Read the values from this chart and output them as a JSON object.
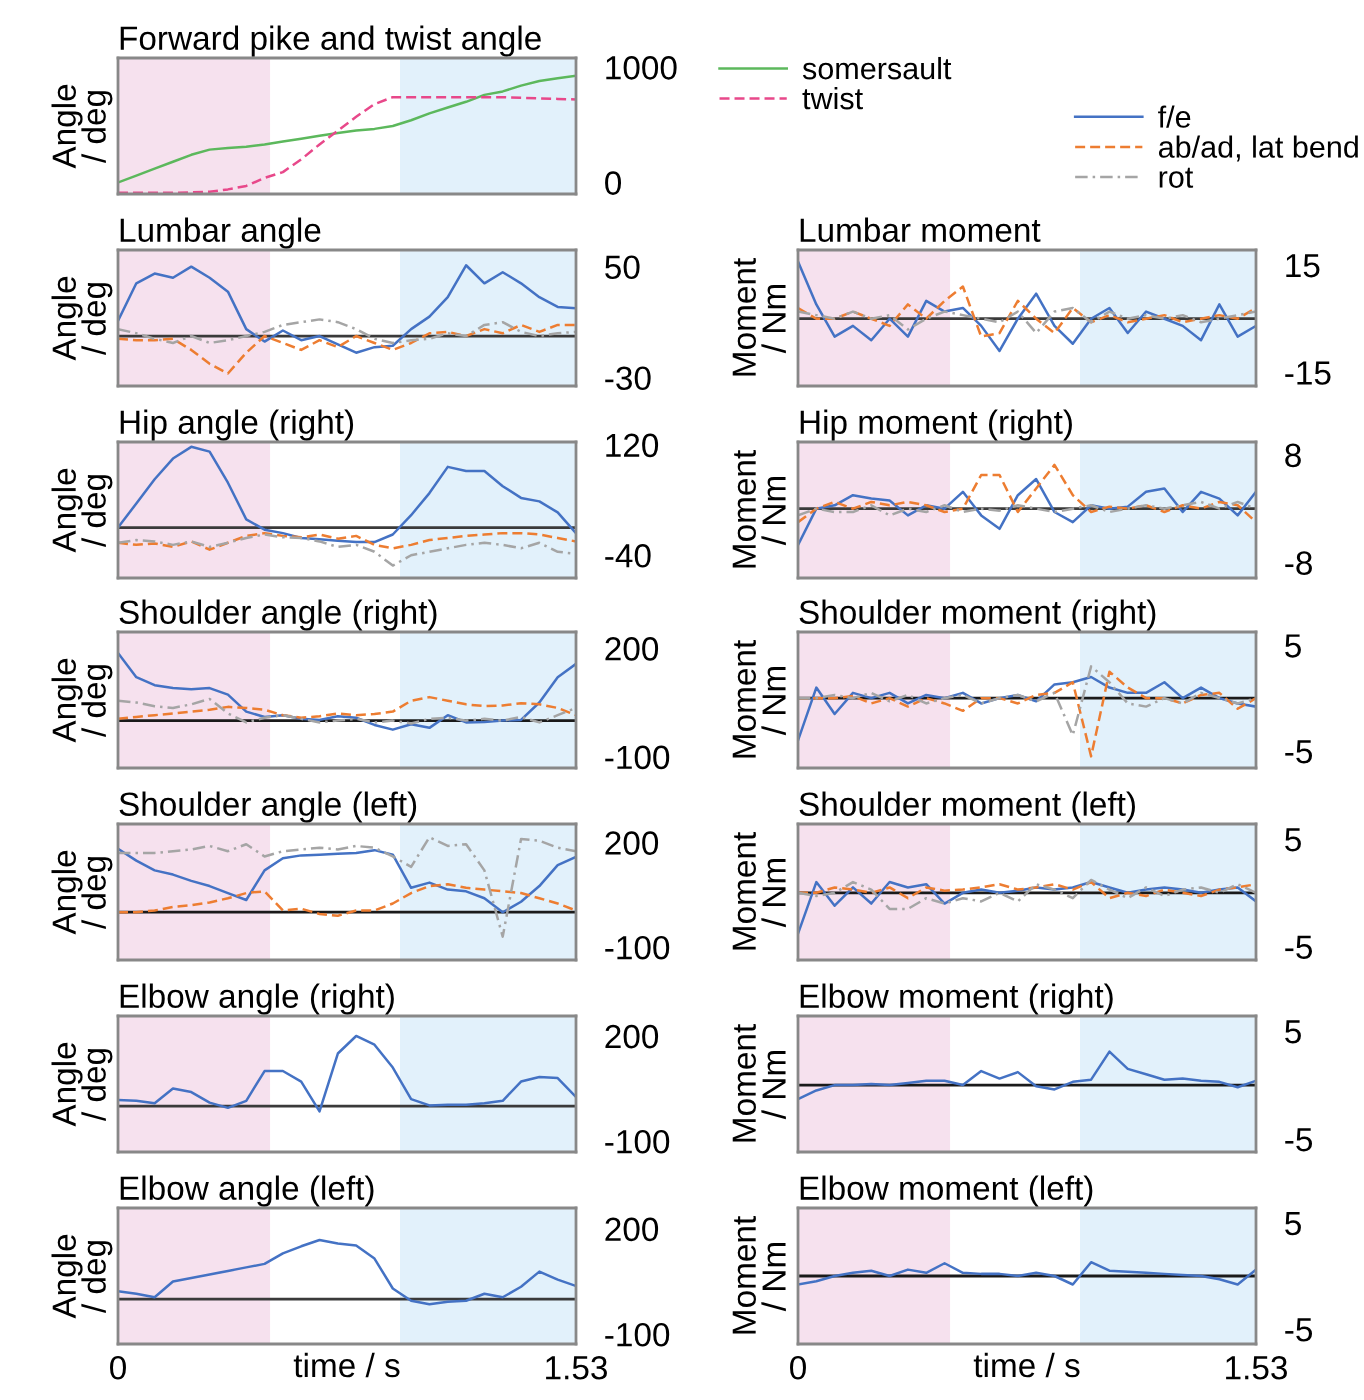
{
  "chart_data": [
    {
      "type": "line",
      "title": "Forward pike and twist angle",
      "ylabel": "Angle\n/ deg",
      "x": [
        0,
        0.0612,
        0.1224,
        0.1836,
        0.2448,
        0.306,
        0.3672,
        0.4284,
        0.4896,
        0.5508,
        0.612,
        0.6732,
        0.7344,
        0.7956,
        0.8568,
        0.918,
        0.9792,
        1.0404,
        1.1016,
        1.1628,
        1.224,
        1.2852,
        1.3464,
        1.4076,
        1.4688,
        1.53
      ],
      "xlim": [
        0,
        1.53
      ],
      "ylim": [
        -100,
        1080
      ],
      "yticks": [
        0,
        1000
      ],
      "tick_labels": "y",
      "legend": "right",
      "grid": false,
      "series": [
        {
          "name": "somersault",
          "color": "#5cb85c",
          "line_style": "solid",
          "values": [
            0,
            60,
            120,
            180,
            240,
            285,
            300,
            310,
            330,
            355,
            380,
            405,
            430,
            450,
            465,
            490,
            540,
            600,
            650,
            700,
            760,
            790,
            840,
            880,
            905,
            925
          ]
        },
        {
          "name": "twist",
          "color": "#e8488a",
          "line_style": "dashed",
          "values": [
            -90,
            -90,
            -90,
            -90,
            -85,
            -80,
            -60,
            -30,
            40,
            90,
            200,
            330,
            450,
            570,
            680,
            740,
            740,
            740,
            740,
            740,
            740,
            740,
            735,
            730,
            725,
            720
          ]
        }
      ],
      "bands": [
        {
          "axis": "x",
          "from": 0,
          "to": 0.508,
          "color": "#f6e1ee"
        },
        {
          "axis": "x",
          "from": 0.942,
          "to": 1.53,
          "color": "#e2f1fb"
        }
      ]
    },
    {
      "type": "line",
      "title": "Lumbar angle",
      "ylabel": "Angle\n/ deg",
      "x": [
        0,
        0.0612,
        0.1224,
        0.1836,
        0.2448,
        0.306,
        0.3672,
        0.4284,
        0.4896,
        0.5508,
        0.612,
        0.6732,
        0.7344,
        0.7956,
        0.8568,
        0.918,
        0.9792,
        1.0404,
        1.1016,
        1.1628,
        1.224,
        1.2852,
        1.3464,
        1.4076,
        1.4688,
        1.53
      ],
      "xlim": [
        0,
        1.53
      ],
      "ylim": [
        -36,
        62
      ],
      "yticks": [
        -30,
        50
      ],
      "tick_labels": "y",
      "grid": false,
      "series": [
        {
          "color": "#4472c4",
          "line_style": "solid",
          "values": [
            11,
            38,
            45,
            42,
            50,
            42,
            32,
            5,
            -4,
            4,
            -3,
            0,
            -6,
            -12,
            -8,
            -7,
            5,
            14,
            28,
            51,
            38,
            46,
            38,
            28,
            21,
            20
          ]
        },
        {
          "color": "#ed7d31",
          "line_style": "dashed",
          "values": [
            -2,
            -3,
            -3,
            -2,
            -10,
            -20,
            -27,
            -12,
            0,
            -5,
            -10,
            -3,
            -8,
            0,
            -5,
            -10,
            -5,
            2,
            3,
            0,
            5,
            2,
            8,
            3,
            8,
            8
          ]
        },
        {
          "color": "#a5a5a5",
          "line_style": "dashdot",
          "values": [
            5,
            2,
            -2,
            -5,
            0,
            -5,
            -3,
            0,
            3,
            8,
            10,
            12,
            10,
            5,
            -2,
            -5,
            -3,
            -2,
            2,
            0,
            8,
            10,
            3,
            0,
            2,
            3
          ]
        }
      ],
      "ref_lines": [
        {
          "axis": "y",
          "value": 0,
          "color": "#3a3a3a"
        }
      ],
      "bands": [
        {
          "axis": "x",
          "from": 0,
          "to": 0.508,
          "color": "#f6e1ee"
        },
        {
          "axis": "x",
          "from": 0.942,
          "to": 1.53,
          "color": "#e2f1fb"
        }
      ]
    },
    {
      "type": "line",
      "title": "Lumbar moment",
      "ylabel": "Moment\n/ Nm",
      "x": [
        0,
        0.0612,
        0.1224,
        0.1836,
        0.2448,
        0.306,
        0.3672,
        0.4284,
        0.4896,
        0.5508,
        0.612,
        0.6732,
        0.7344,
        0.7956,
        0.8568,
        0.918,
        0.9792,
        1.0404,
        1.1016,
        1.1628,
        1.224,
        1.2852,
        1.3464,
        1.4076,
        1.4688,
        1.53
      ],
      "xlim": [
        0,
        1.53
      ],
      "ylim": [
        -18.8,
        19.2
      ],
      "yticks": [
        -15,
        15
      ],
      "tick_labels": "y",
      "legend": "top right",
      "grid": false,
      "series": [
        {
          "name": "f/e",
          "color": "#4472c4",
          "line_style": "solid",
          "values": [
            16,
            4,
            -5,
            -2,
            -6,
            0,
            -5,
            5,
            2,
            3,
            -2,
            -9,
            0,
            7,
            -2,
            -7,
            0,
            3,
            -4,
            2,
            0,
            -2,
            -6,
            4,
            -5,
            -2
          ]
        },
        {
          "name": "ab/ad, lat bend",
          "color": "#ed7d31",
          "line_style": "dashed",
          "values": [
            3,
            0,
            0,
            2,
            0,
            -2,
            4,
            0,
            5,
            9,
            -5,
            -4,
            5,
            0,
            -4,
            3,
            -1,
            1,
            -1,
            0,
            1,
            -1,
            0,
            1,
            0,
            3
          ]
        },
        {
          "name": "rot",
          "color": "#a5a5a5",
          "line_style": "dashdot",
          "values": [
            2,
            1,
            0,
            2,
            0,
            1,
            -3,
            0,
            2,
            1,
            0,
            -1,
            2,
            -4,
            2,
            3,
            -1,
            2,
            0,
            1,
            0,
            1,
            -1,
            0,
            1,
            2
          ]
        }
      ],
      "ref_lines": [
        {
          "axis": "y",
          "value": 0,
          "color": "#3a3a3a"
        }
      ],
      "bands": [
        {
          "axis": "x",
          "from": 0,
          "to": 0.508,
          "color": "#f6e1ee"
        },
        {
          "axis": "x",
          "from": 0.942,
          "to": 1.53,
          "color": "#e2f1fb"
        }
      ]
    },
    {
      "type": "line",
      "title": "Hip angle (right)",
      "ylabel": "Angle\n/ deg",
      "x": [
        0,
        0.0612,
        0.1224,
        0.1836,
        0.2448,
        0.306,
        0.3672,
        0.4284,
        0.4896,
        0.5508,
        0.612,
        0.6732,
        0.7344,
        0.7956,
        0.8568,
        0.918,
        0.9792,
        1.0404,
        1.1016,
        1.1628,
        1.224,
        1.2852,
        1.3464,
        1.4076,
        1.4688,
        1.53
      ],
      "xlim": [
        0,
        1.53
      ],
      "ylim": [
        -73,
        124
      ],
      "yticks": [
        -40,
        120
      ],
      "tick_labels": "y",
      "grid": false,
      "series": [
        {
          "color": "#4472c4",
          "line_style": "solid",
          "values": [
            0,
            35,
            70,
            100,
            117,
            110,
            65,
            12,
            -3,
            -8,
            -15,
            -17,
            -19,
            -21,
            -21,
            -10,
            18,
            50,
            88,
            82,
            82,
            60,
            43,
            38,
            22,
            -8
          ]
        },
        {
          "color": "#ed7d31",
          "line_style": "dashed",
          "values": [
            -22,
            -25,
            -23,
            -28,
            -20,
            -32,
            -22,
            -12,
            -8,
            -12,
            -14,
            -10,
            -16,
            -12,
            -25,
            -30,
            -25,
            -18,
            -15,
            -12,
            -10,
            -8,
            -8,
            -10,
            -15,
            -20
          ]
        },
        {
          "color": "#a5a5a5",
          "line_style": "dashdot",
          "values": [
            -22,
            -18,
            -20,
            -25,
            -20,
            -28,
            -22,
            -15,
            -10,
            -14,
            -15,
            -20,
            -28,
            -25,
            -35,
            -55,
            -40,
            -35,
            -30,
            -25,
            -22,
            -25,
            -30,
            -22,
            -35,
            -38
          ]
        }
      ],
      "ref_lines": [
        {
          "axis": "y",
          "value": 0,
          "color": "#3a3a3a"
        }
      ],
      "bands": [
        {
          "axis": "x",
          "from": 0,
          "to": 0.508,
          "color": "#f6e1ee"
        },
        {
          "axis": "x",
          "from": 0.942,
          "to": 1.53,
          "color": "#e2f1fb"
        }
      ]
    },
    {
      "type": "line",
      "title": "Hip moment (right)",
      "ylabel": "Moment\n/ Nm",
      "x": [
        0,
        0.0612,
        0.1224,
        0.1836,
        0.2448,
        0.306,
        0.3672,
        0.4284,
        0.4896,
        0.5508,
        0.612,
        0.6732,
        0.7344,
        0.7956,
        0.8568,
        0.918,
        0.9792,
        1.0404,
        1.1016,
        1.1628,
        1.224,
        1.2852,
        1.3464,
        1.4076,
        1.4688,
        1.53
      ],
      "xlim": [
        0,
        1.53
      ],
      "ylim": [
        -10.3,
        9.9
      ],
      "yticks": [
        -8,
        8
      ],
      "tick_labels": "y",
      "grid": false,
      "series": [
        {
          "color": "#4472c4",
          "line_style": "solid",
          "values": [
            -5.4,
            0,
            0.5,
            2,
            1.5,
            1.2,
            -1,
            0.5,
            0,
            2.5,
            -1,
            -3,
            2,
            4.4,
            -0.5,
            -2,
            0.5,
            0,
            0.3,
            2.5,
            3,
            -0.5,
            2.5,
            1.5,
            -1,
            2.5
          ]
        },
        {
          "color": "#ed7d31",
          "line_style": "dashed",
          "values": [
            -2,
            0,
            1,
            0,
            1,
            0.5,
            1,
            0.5,
            -0.5,
            0,
            5,
            5,
            -0.5,
            3,
            6.5,
            2,
            -0.5,
            0.3,
            0,
            0.5,
            -0.5,
            0.5,
            0,
            1,
            0.5,
            -2
          ]
        },
        {
          "color": "#a5a5a5",
          "line_style": "dashdot",
          "values": [
            -1,
            0,
            -0.5,
            -0.5,
            0.5,
            -1,
            0,
            -0.5,
            0.5,
            -0.5,
            0,
            -0.3,
            0.5,
            0,
            -0.5,
            0,
            0.5,
            -0.5,
            0,
            0.5,
            0,
            0.5,
            1,
            0,
            1,
            0
          ]
        }
      ],
      "ref_lines": [
        {
          "axis": "y",
          "value": 0,
          "color": "#3a3a3a"
        }
      ],
      "bands": [
        {
          "axis": "x",
          "from": 0,
          "to": 0.508,
          "color": "#f6e1ee"
        },
        {
          "axis": "x",
          "from": 0.942,
          "to": 1.53,
          "color": "#e2f1fb"
        }
      ]
    },
    {
      "type": "line",
      "title": "Shoulder angle (right)",
      "ylabel": "Angle\n/ deg",
      "x": [
        0,
        0.0612,
        0.1224,
        0.1836,
        0.2448,
        0.306,
        0.3672,
        0.4284,
        0.4896,
        0.5508,
        0.612,
        0.6732,
        0.7344,
        0.7956,
        0.8568,
        0.918,
        0.9792,
        1.0404,
        1.1016,
        1.1628,
        1.224,
        1.2852,
        1.3464,
        1.4076,
        1.4688,
        1.53
      ],
      "xlim": [
        0,
        1.53
      ],
      "ylim": [
        -131,
        245
      ],
      "yticks": [
        -100,
        200
      ],
      "tick_labels": "y",
      "grid": false,
      "series": [
        {
          "color": "#4472c4",
          "line_style": "solid",
          "values": [
            187,
            120,
            98,
            90,
            87,
            90,
            72,
            25,
            10,
            15,
            5,
            2,
            12,
            8,
            -12,
            -25,
            -10,
            -20,
            15,
            -5,
            -4,
            0,
            2,
            50,
            120,
            157
          ]
        },
        {
          "color": "#ed7d31",
          "line_style": "dashed",
          "values": [
            5,
            10,
            15,
            20,
            25,
            30,
            38,
            35,
            30,
            15,
            8,
            12,
            20,
            15,
            18,
            25,
            55,
            65,
            55,
            45,
            40,
            42,
            48,
            45,
            35,
            15
          ]
        },
        {
          "color": "#a5a5a5",
          "line_style": "dashdot",
          "values": [
            55,
            50,
            40,
            35,
            45,
            60,
            20,
            -5,
            8,
            15,
            5,
            -5,
            0,
            5,
            -5,
            0,
            -8,
            5,
            8,
            0,
            5,
            0,
            10,
            -5,
            15,
            35
          ]
        }
      ],
      "ref_lines": [
        {
          "axis": "y",
          "value": 0,
          "color": "#1a1a1a"
        }
      ],
      "bands": [
        {
          "axis": "x",
          "from": 0,
          "to": 0.508,
          "color": "#f6e1ee"
        },
        {
          "axis": "x",
          "from": 0.942,
          "to": 1.53,
          "color": "#e2f1fb"
        }
      ]
    },
    {
      "type": "line",
      "title": "Shoulder moment (right)",
      "ylabel": "Moment\n/ Nm",
      "x": [
        0,
        0.0612,
        0.1224,
        0.1836,
        0.2448,
        0.306,
        0.3672,
        0.4284,
        0.4896,
        0.5508,
        0.612,
        0.6732,
        0.7344,
        0.7956,
        0.8568,
        0.918,
        0.9792,
        1.0404,
        1.1016,
        1.1628,
        1.224,
        1.2852,
        1.3464,
        1.4076,
        1.4688,
        1.53
      ],
      "xlim": [
        0,
        1.53
      ],
      "ylim": [
        -6.6,
        6.25
      ],
      "yticks": [
        -5,
        5
      ],
      "tick_labels": "y",
      "grid": false,
      "series": [
        {
          "color": "#4472c4",
          "line_style": "solid",
          "values": [
            -4,
            1,
            -1.5,
            0.5,
            0,
            0.5,
            -0.5,
            0.3,
            0,
            0.5,
            -0.5,
            0,
            0.3,
            -0.3,
            1.3,
            1.5,
            2,
            1,
            0.5,
            0.5,
            1.5,
            0,
            1,
            0,
            -0.5,
            -0.8
          ]
        },
        {
          "color": "#ed7d31",
          "line_style": "dashed",
          "values": [
            0,
            0,
            0,
            0.2,
            -0.5,
            0,
            -0.8,
            0,
            -0.5,
            -1.2,
            0,
            0,
            -0.5,
            0.3,
            0.5,
            1.5,
            -5.5,
            2.5,
            1,
            0,
            0,
            -0.5,
            0.3,
            0.5,
            -1,
            0
          ]
        },
        {
          "color": "#a5a5a5",
          "line_style": "dashdot",
          "values": [
            0,
            0,
            0.3,
            0,
            0.5,
            -0.3,
            0.3,
            -0.5,
            0,
            0.3,
            -0.5,
            0,
            0.3,
            -0.3,
            0.5,
            -3.5,
            3,
            1.5,
            -0.5,
            -0.8,
            0,
            -0.5,
            0.5,
            0,
            -0.5,
            0
          ]
        }
      ],
      "ref_lines": [
        {
          "axis": "y",
          "value": 0,
          "color": "#1a1a1a"
        }
      ],
      "bands": [
        {
          "axis": "x",
          "from": 0,
          "to": 0.508,
          "color": "#f6e1ee"
        },
        {
          "axis": "x",
          "from": 0.942,
          "to": 1.53,
          "color": "#e2f1fb"
        }
      ]
    },
    {
      "type": "line",
      "title": "Shoulder angle (left)",
      "ylabel": "Angle\n/ deg",
      "x": [
        0,
        0.0612,
        0.1224,
        0.1836,
        0.2448,
        0.306,
        0.3672,
        0.4284,
        0.4896,
        0.5508,
        0.612,
        0.6732,
        0.7344,
        0.7956,
        0.8568,
        0.918,
        0.9792,
        1.0404,
        1.1016,
        1.1628,
        1.224,
        1.2852,
        1.3464,
        1.4076,
        1.4688,
        1.53
      ],
      "xlim": [
        0,
        1.53
      ],
      "ylim": [
        -137,
        253
      ],
      "yticks": [
        -100,
        200
      ],
      "tick_labels": "y",
      "grid": false,
      "series": [
        {
          "color": "#4472c4",
          "line_style": "solid",
          "values": [
            182,
            148,
            120,
            108,
            90,
            75,
            55,
            35,
            120,
            155,
            163,
            165,
            168,
            170,
            178,
            165,
            70,
            85,
            65,
            60,
            40,
            0,
            30,
            75,
            135,
            159
          ]
        },
        {
          "color": "#ed7d31",
          "line_style": "dashed",
          "values": [
            0,
            0,
            5,
            15,
            20,
            28,
            40,
            55,
            60,
            5,
            10,
            -5,
            -10,
            5,
            5,
            25,
            55,
            75,
            80,
            70,
            65,
            60,
            55,
            40,
            25,
            5
          ]
        },
        {
          "color": "#a5a5a5",
          "line_style": "dashdot",
          "values": [
            170,
            170,
            170,
            175,
            180,
            190,
            175,
            195,
            160,
            175,
            180,
            185,
            180,
            190,
            185,
            160,
            130,
            215,
            190,
            195,
            120,
            -70,
            210,
            205,
            185,
            175
          ]
        }
      ],
      "ref_lines": [
        {
          "axis": "y",
          "value": 0,
          "color": "#1a1a1a"
        }
      ],
      "bands": [
        {
          "axis": "x",
          "from": 0,
          "to": 0.508,
          "color": "#f6e1ee"
        },
        {
          "axis": "x",
          "from": 0.942,
          "to": 1.53,
          "color": "#e2f1fb"
        }
      ]
    },
    {
      "type": "line",
      "title": "Shoulder moment (left)",
      "ylabel": "Moment\n/ Nm",
      "x": [
        0,
        0.0612,
        0.1224,
        0.1836,
        0.2448,
        0.306,
        0.3672,
        0.4284,
        0.4896,
        0.5508,
        0.612,
        0.6732,
        0.7344,
        0.7956,
        0.8568,
        0.918,
        0.9792,
        1.0404,
        1.1016,
        1.1628,
        1.224,
        1.2852,
        1.3464,
        1.4076,
        1.4688,
        1.53
      ],
      "xlim": [
        0,
        1.53
      ],
      "ylim": [
        -6.25,
        6.4
      ],
      "yticks": [
        -5,
        5
      ],
      "tick_labels": "y",
      "grid": false,
      "series": [
        {
          "color": "#4472c4",
          "line_style": "solid",
          "values": [
            -3.8,
            1,
            -1.2,
            0.5,
            -1,
            1,
            0.5,
            0.8,
            -1,
            0,
            0.3,
            0,
            0.2,
            0.5,
            0.3,
            0.5,
            1,
            0.5,
            0,
            0.3,
            0.5,
            0.3,
            0,
            0.3,
            0.5,
            -0.8
          ]
        },
        {
          "color": "#ed7d31",
          "line_style": "dashed",
          "values": [
            0,
            0,
            0.5,
            0.3,
            0,
            0.5,
            -0.5,
            0.5,
            0.2,
            0.3,
            0.5,
            0.8,
            0.3,
            0.5,
            0.8,
            0.3,
            1,
            -0.5,
            0,
            -0.3,
            0.3,
            0,
            -0.3,
            0.3,
            0.5,
            0.8
          ]
        },
        {
          "color": "#a5a5a5",
          "line_style": "dashdot",
          "values": [
            0,
            -0.3,
            0,
            1,
            0.3,
            -1.5,
            -1.5,
            -0.5,
            -1,
            -0.5,
            -0.8,
            0,
            -0.8,
            0.8,
            0.3,
            -0.5,
            1.2,
            0.3,
            -0.5,
            0.5,
            -0.3,
            0.3,
            0.5,
            0,
            0.8,
            0
          ]
        }
      ],
      "ref_lines": [
        {
          "axis": "y",
          "value": 0,
          "color": "#1a1a1a"
        }
      ],
      "bands": [
        {
          "axis": "x",
          "from": 0,
          "to": 0.508,
          "color": "#f6e1ee"
        },
        {
          "axis": "x",
          "from": 0.942,
          "to": 1.53,
          "color": "#e2f1fb"
        }
      ]
    },
    {
      "type": "line",
      "title": "Elbow angle (right)",
      "ylabel": "Angle\n/ deg",
      "x": [
        0,
        0.0612,
        0.1224,
        0.1836,
        0.2448,
        0.306,
        0.3672,
        0.4284,
        0.4896,
        0.5508,
        0.612,
        0.6732,
        0.7344,
        0.7956,
        0.8568,
        0.918,
        0.9792,
        1.0404,
        1.1016,
        1.1628,
        1.224,
        1.2852,
        1.3464,
        1.4076,
        1.4688,
        1.53
      ],
      "xlim": [
        0,
        1.53
      ],
      "ylim": [
        -131,
        257
      ],
      "yticks": [
        -100,
        200
      ],
      "tick_labels": "y",
      "grid": false,
      "series": [
        {
          "color": "#4472c4",
          "line_style": "solid",
          "values": [
            17,
            15,
            8,
            50,
            40,
            10,
            -5,
            15,
            100,
            100,
            70,
            -15,
            150,
            200,
            175,
            110,
            20,
            2,
            4,
            4,
            8,
            15,
            70,
            83,
            80,
            26
          ]
        }
      ],
      "ref_lines": [
        {
          "axis": "y",
          "value": 0,
          "color": "#3a3a3a"
        }
      ],
      "bands": [
        {
          "axis": "x",
          "from": 0,
          "to": 0.508,
          "color": "#f6e1ee"
        },
        {
          "axis": "x",
          "from": 0.942,
          "to": 1.53,
          "color": "#e2f1fb"
        }
      ]
    },
    {
      "type": "line",
      "title": "Elbow moment (right)",
      "ylabel": "Moment\n/ Nm",
      "x": [
        0,
        0.0612,
        0.1224,
        0.1836,
        0.2448,
        0.306,
        0.3672,
        0.4284,
        0.4896,
        0.5508,
        0.612,
        0.6732,
        0.7344,
        0.7956,
        0.8568,
        0.918,
        0.9792,
        1.0404,
        1.1016,
        1.1628,
        1.224,
        1.2852,
        1.3464,
        1.4076,
        1.4688,
        1.53
      ],
      "xlim": [
        0,
        1.53
      ],
      "ylim": [
        -6.2,
        6.4
      ],
      "yticks": [
        -5,
        5
      ],
      "tick_labels": "y",
      "grid": false,
      "series": [
        {
          "color": "#4472c4",
          "line_style": "solid",
          "values": [
            -1.3,
            -0.5,
            0,
            0,
            0.1,
            0,
            0.2,
            0.4,
            0.4,
            0,
            1.3,
            0.6,
            1.2,
            -0.1,
            -0.4,
            0.3,
            0.5,
            3.1,
            1.5,
            1,
            0.5,
            0.6,
            0.4,
            0.3,
            -0.2,
            0.4
          ]
        }
      ],
      "ref_lines": [
        {
          "axis": "y",
          "value": 0,
          "color": "#1a1a1a"
        }
      ],
      "bands": [
        {
          "axis": "x",
          "from": 0,
          "to": 0.508,
          "color": "#f6e1ee"
        },
        {
          "axis": "x",
          "from": 0.942,
          "to": 1.53,
          "color": "#e2f1fb"
        }
      ]
    },
    {
      "type": "line",
      "title": "Elbow angle (left)",
      "ylabel": "Angle\n/ deg",
      "xlabel": "time / s",
      "x": [
        0,
        0.0612,
        0.1224,
        0.1836,
        0.2448,
        0.306,
        0.3672,
        0.4284,
        0.4896,
        0.5508,
        0.612,
        0.6732,
        0.7344,
        0.7956,
        0.8568,
        0.918,
        0.9792,
        1.0404,
        1.1016,
        1.1628,
        1.224,
        1.2852,
        1.3464,
        1.4076,
        1.4688,
        1.53
      ],
      "xlim": [
        0,
        1.53
      ],
      "xticks": [
        0,
        1.53
      ],
      "ylim": [
        -128,
        259
      ],
      "yticks": [
        -100,
        200
      ],
      "grid": false,
      "series": [
        {
          "color": "#4472c4",
          "line_style": "solid",
          "values": [
            22,
            15,
            5,
            50,
            60,
            70,
            80,
            90,
            100,
            130,
            150,
            168,
            158,
            152,
            115,
            30,
            -5,
            -15,
            -8,
            -5,
            15,
            5,
            35,
            78,
            55,
            37
          ]
        }
      ],
      "ref_lines": [
        {
          "axis": "y",
          "value": 0,
          "color": "#3a3a3a"
        }
      ],
      "bands": [
        {
          "axis": "x",
          "from": 0,
          "to": 0.508,
          "color": "#f6e1ee"
        },
        {
          "axis": "x",
          "from": 0.942,
          "to": 1.53,
          "color": "#e2f1fb"
        }
      ]
    },
    {
      "type": "line",
      "title": "Elbow moment (left)",
      "ylabel": "Moment\n/ Nm",
      "xlabel": "time / s",
      "x": [
        0,
        0.0612,
        0.1224,
        0.1836,
        0.2448,
        0.306,
        0.3672,
        0.4284,
        0.4896,
        0.5508,
        0.612,
        0.6732,
        0.7344,
        0.7956,
        0.8568,
        0.918,
        0.9792,
        1.0404,
        1.1016,
        1.1628,
        1.224,
        1.2852,
        1.3464,
        1.4076,
        1.4688,
        1.53
      ],
      "xlim": [
        0,
        1.53
      ],
      "xticks": [
        0,
        1.53
      ],
      "ylim": [
        -6.4,
        6.4
      ],
      "yticks": [
        -5,
        5
      ],
      "grid": false,
      "series": [
        {
          "color": "#4472c4",
          "line_style": "solid",
          "values": [
            -0.8,
            -0.5,
            0,
            0.3,
            0.5,
            0,
            0.6,
            0.3,
            1.2,
            0.3,
            0.2,
            0.2,
            0,
            0.3,
            0,
            -0.8,
            1.3,
            0.5,
            0.4,
            0.3,
            0.2,
            0.1,
            0,
            -0.3,
            -0.8,
            0.6
          ]
        }
      ],
      "ref_lines": [
        {
          "axis": "y",
          "value": 0,
          "color": "#1a1a1a"
        }
      ],
      "bands": [
        {
          "axis": "x",
          "from": 0,
          "to": 0.508,
          "color": "#f6e1ee"
        },
        {
          "axis": "x",
          "from": 0.942,
          "to": 1.53,
          "color": "#e2f1fb"
        }
      ]
    }
  ]
}
